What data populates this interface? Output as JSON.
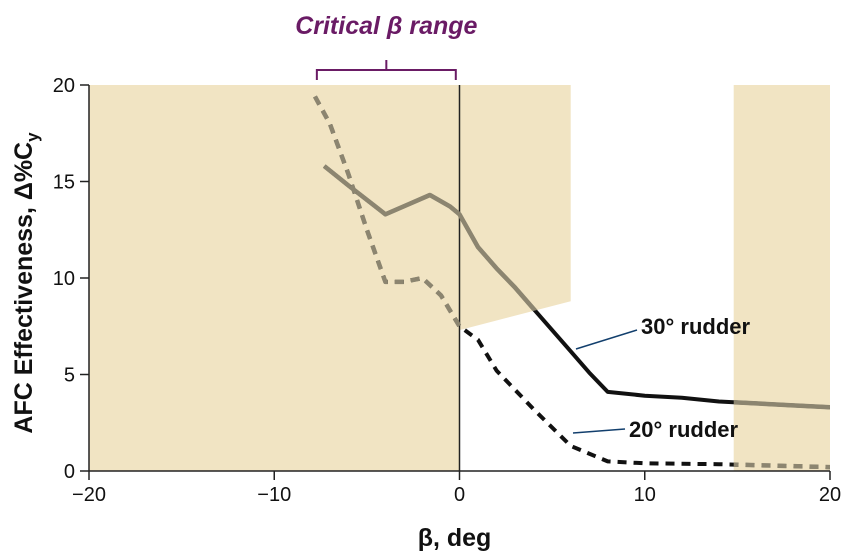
{
  "chart_data": {
    "type": "line",
    "xlabel": "β, deg",
    "ylabel_main": "AFC Effectiveness, Δ%C",
    "ylabel_sub": "y",
    "xlim": [
      -20,
      20
    ],
    "ylim": [
      0,
      20
    ],
    "x_ticks": [
      -20,
      -10,
      0,
      10,
      20
    ],
    "y_ticks": [
      0,
      5,
      10,
      15,
      20
    ],
    "x_tick_labels": [
      "−20",
      "−10",
      "0",
      "10",
      "20"
    ],
    "y_tick_labels": [
      "0",
      "5",
      "10",
      "15",
      "20"
    ],
    "critical_range": {
      "label": "Critical β range",
      "x_start": -7.7,
      "x_end": -0.2
    },
    "shaded_regions": [
      {
        "x": [
          -20,
          0
        ],
        "y": [
          0,
          20
        ]
      },
      {
        "x": [
          0,
          6
        ],
        "y_bottom": [
          7.3,
          8.8
        ],
        "y_top": 20
      },
      {
        "x": [
          14.8,
          20
        ],
        "y": [
          0,
          20
        ]
      }
    ],
    "series": [
      {
        "name": "30° rudder",
        "style": "solid",
        "x": [
          -7.3,
          -6,
          -4,
          -2.8,
          -1.6,
          -0.5,
          0,
          1,
          2,
          3,
          4,
          5,
          6,
          7,
          8,
          10,
          12,
          14,
          16,
          18,
          20
        ],
        "y": [
          15.8,
          14.8,
          13.3,
          13.8,
          14.3,
          13.7,
          13.3,
          11.6,
          10.5,
          9.5,
          8.4,
          7.3,
          6.2,
          5.1,
          4.1,
          3.9,
          3.8,
          3.6,
          3.5,
          3.4,
          3.3
        ]
      },
      {
        "name": "20° rudder",
        "style": "dashed",
        "x": [
          -7.8,
          -7,
          -6,
          -5,
          -4,
          -3,
          -2,
          -1,
          0,
          1,
          2,
          4,
          6,
          8,
          10,
          14,
          20
        ],
        "y": [
          19.4,
          18.0,
          15.4,
          12.5,
          9.8,
          9.8,
          10.0,
          9.1,
          7.5,
          6.8,
          5.2,
          3.2,
          1.3,
          0.5,
          0.4,
          0.35,
          0.2
        ]
      }
    ],
    "colors": {
      "shade": "#f1e4c3",
      "curve_dark": "#111111",
      "curve_on_shade": "#8c8570",
      "critical": "#6a1b65",
      "leader": "#123f6d"
    }
  }
}
